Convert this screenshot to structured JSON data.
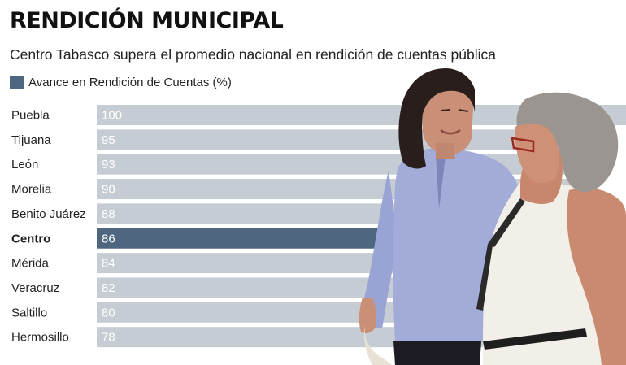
{
  "header": {
    "title": "RENDICIÓN MUNICIPAL",
    "subtitle": "Centro Tabasco supera el promedio nacional en rendición de cuentas pública"
  },
  "legend": {
    "label": "Avance en Rendición de Cuentas (%)",
    "color": "#4f6681"
  },
  "colors": {
    "bar": "#c6ccd3",
    "highlight": "#4f6681",
    "value_text": "#ffffff"
  },
  "photo": {
    "icon": "photo-two-women-embracing"
  },
  "chart_data": {
    "type": "bar",
    "orientation": "horizontal",
    "title": "RENDICIÓN MUNICIPAL",
    "subtitle": "Centro Tabasco supera el promedio nacional en rendición de cuentas pública",
    "legend": "top-left",
    "categories": [
      "Puebla",
      "Tijuana",
      "León",
      "Morelia",
      "Benito Juárez",
      "Centro",
      "Mérida",
      "Veracruz",
      "Saltillo",
      "Hermosillo"
    ],
    "series": [
      {
        "name": "Avance en Rendición de Cuentas (%)",
        "values": [
          100,
          95,
          93,
          90,
          88,
          86,
          84,
          82,
          80,
          78
        ]
      }
    ],
    "highlight": "Centro",
    "xlim": [
      0,
      100
    ],
    "grid": false
  }
}
